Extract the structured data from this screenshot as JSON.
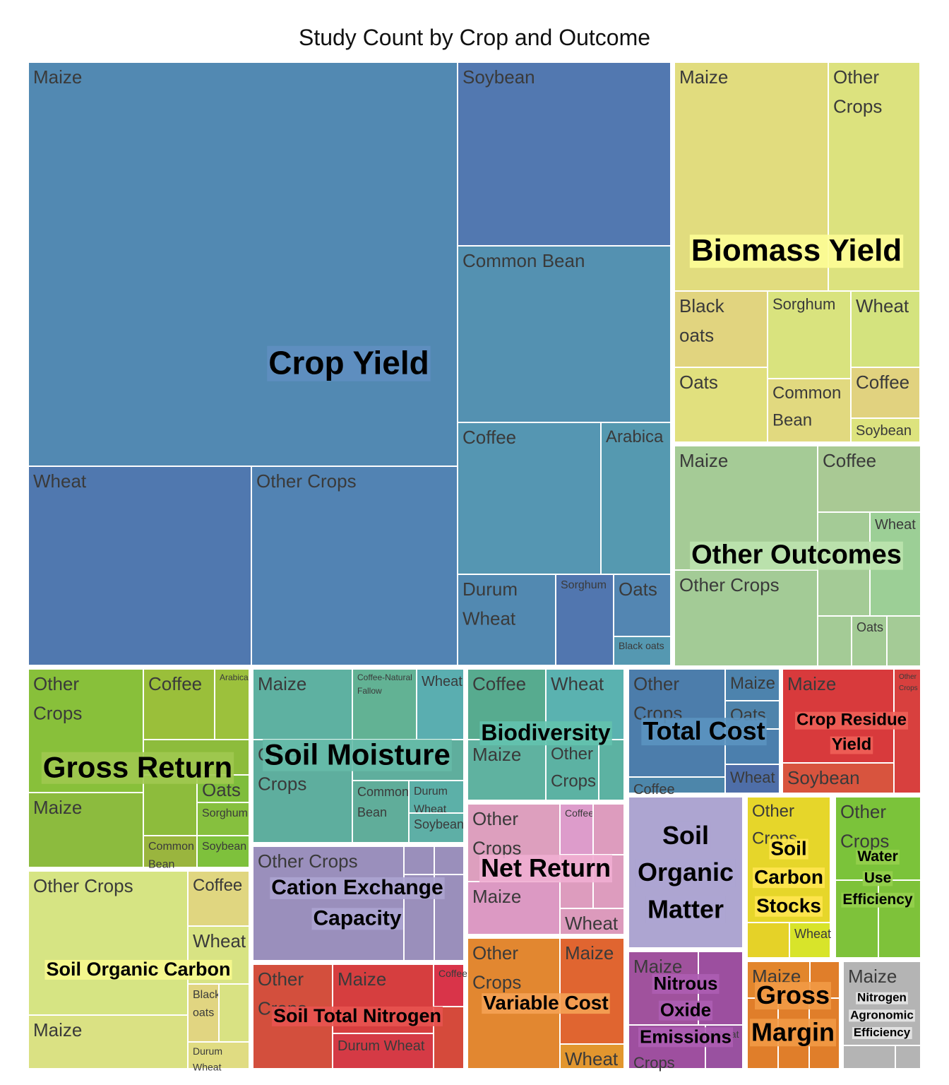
{
  "chart_data": {
    "type": "treemap",
    "title": "Study Count by Crop and Outcome",
    "groups": [
      {
        "name": "Crop Yield",
        "color": "#5188b1",
        "label_bg": "#5f8fc0",
        "children": [
          {
            "name": "Maize",
            "color": "#5289b2"
          },
          {
            "name": "Wheat",
            "color": "#5078af"
          },
          {
            "name": "Other Crops",
            "color": "#5283b3"
          },
          {
            "name": "Soybean",
            "color": "#5278b0"
          },
          {
            "name": "Common Bean",
            "color": "#5491b1"
          },
          {
            "name": "Coffee",
            "color": "#5596b2"
          },
          {
            "name": "Arabica",
            "color": "#5599b0"
          },
          {
            "name": "Durum Wheat",
            "color": "#5289b1"
          },
          {
            "name": "Sorghum",
            "color": "#5176af"
          },
          {
            "name": "Oats",
            "color": "#5386b2"
          },
          {
            "name": "Black oats",
            "color": "#5598b1"
          }
        ]
      },
      {
        "name": "Biomass Yield",
        "color": "#e0de7e",
        "label_bg": "#fdfd96",
        "children": [
          {
            "name": "Maize",
            "color": "#e1dc7e"
          },
          {
            "name": "Other Crops",
            "color": "#dce27e"
          },
          {
            "name": "Black oats",
            "color": "#e1d47f"
          },
          {
            "name": "Sorghum",
            "color": "#d9e37e"
          },
          {
            "name": "Wheat",
            "color": "#d4e37e"
          },
          {
            "name": "Oats",
            "color": "#e1e07e"
          },
          {
            "name": "Common Bean",
            "color": "#e1d97f"
          },
          {
            "name": "Coffee",
            "color": "#e1d27f"
          },
          {
            "name": "Soybean",
            "color": "#dde37e"
          }
        ]
      },
      {
        "name": "Other Outcomes",
        "color": "#a4cb96",
        "label_bg": "#bde3ae",
        "children": [
          {
            "name": "Maize",
            "color": "#a5cb96"
          },
          {
            "name": "Coffee",
            "color": "#a9c994"
          },
          {
            "name": "Wheat",
            "color": "#9ccf96"
          },
          {
            "name": "Other Crops",
            "color": "#a3cb96"
          },
          {
            "name": "Oats",
            "color": "#a3cb95"
          }
        ]
      },
      {
        "name": "Gross Return",
        "color": "#8dbc3c",
        "label_bg": "#a0c850",
        "children": [
          {
            "name": "Other Crops",
            "color": "#88c03a"
          },
          {
            "name": "Coffee",
            "color": "#9abf3a"
          },
          {
            "name": "Arabica",
            "color": "#9cc13c"
          },
          {
            "name": "Maize",
            "color": "#8cbb3e"
          },
          {
            "name": "Oats",
            "color": "#7fbd3c"
          },
          {
            "name": "Sorghum",
            "color": "#86c03e"
          },
          {
            "name": "Common Bean",
            "color": "#9ab53e"
          },
          {
            "name": "Soybean",
            "color": "#7ec13c"
          }
        ]
      },
      {
        "name": "Soil Moisture",
        "color": "#5fae9d",
        "label_bg": "#66bba8",
        "children": [
          {
            "name": "Maize",
            "color": "#5eb1a1"
          },
          {
            "name": "Coffee-Natural Fallow",
            "color": "#62b294"
          },
          {
            "name": "Wheat",
            "color": "#5aaeb0"
          },
          {
            "name": "Other Crops",
            "color": "#5eae9e"
          },
          {
            "name": "Common Bean",
            "color": "#60ad9a"
          },
          {
            "name": "Durum Wheat",
            "color": "#5cb0a8"
          },
          {
            "name": "Soybean",
            "color": "#5eafa6"
          }
        ]
      },
      {
        "name": "Biodiversity",
        "color": "#5cb2a2",
        "label_bg": "#63c2ae",
        "children": [
          {
            "name": "Coffee",
            "color": "#57ab8f"
          },
          {
            "name": "Wheat",
            "color": "#5ab2b0"
          },
          {
            "name": "Maize",
            "color": "#5fb2a0"
          },
          {
            "name": "Other Crops",
            "color": "#5cb2a3"
          }
        ]
      },
      {
        "name": "Total Cost",
        "color": "#4b7fad",
        "label_bg": "#5b93c0",
        "children": [
          {
            "name": "Other Crops",
            "color": "#4c7dab"
          },
          {
            "name": "Maize",
            "color": "#4d83ad"
          },
          {
            "name": "Oats",
            "color": "#4f84ac"
          },
          {
            "name": "Wheat",
            "color": "#4e6ea8"
          },
          {
            "name": "Coffee",
            "color": "#4d86aa"
          }
        ]
      },
      {
        "name": "Crop Residue Yield",
        "color": "#d93e3b",
        "label_bg": "#f06058",
        "children": [
          {
            "name": "Maize",
            "color": "#d83a3c"
          },
          {
            "name": "Soybean",
            "color": "#d8543e"
          },
          {
            "name": "Other Crops",
            "color": "#d8403e"
          }
        ]
      },
      {
        "name": "Net Return",
        "color": "#dd9cbe",
        "label_bg": "#f0aed2",
        "children": [
          {
            "name": "Other Crops",
            "color": "#dd9fbe"
          },
          {
            "name": "Coffee",
            "color": "#dd9ccb"
          },
          {
            "name": "Maize",
            "color": "#dc99c3"
          },
          {
            "name": "Wheat",
            "color": "#dc9abc"
          }
        ]
      },
      {
        "name": "Cation Exchange Capacity",
        "color": "#9a8fbb",
        "label_bg": "#aca4d0",
        "children": [
          {
            "name": "Other Crops",
            "color": "#9a8fbc"
          }
        ]
      },
      {
        "name": "Soil Organic Carbon",
        "color": "#d9e283",
        "label_bg": "#f7f88e",
        "children": [
          {
            "name": "Other Crops",
            "color": "#d6e483"
          },
          {
            "name": "Coffee",
            "color": "#e0d680"
          },
          {
            "name": "Wheat",
            "color": "#d8e383"
          },
          {
            "name": "Black oats",
            "color": "#e1d581"
          },
          {
            "name": "Maize",
            "color": "#dae183"
          },
          {
            "name": "Durum Wheat",
            "color": "#e0dc82"
          }
        ]
      },
      {
        "name": "Soil Total Nitrogen",
        "color": "#d54a3b",
        "label_bg": "#e85350",
        "children": [
          {
            "name": "Other Crops",
            "color": "#d34f3d"
          },
          {
            "name": "Maize",
            "color": "#d63e3f"
          },
          {
            "name": "Coffee",
            "color": "#d93449"
          },
          {
            "name": "Durum Wheat",
            "color": "#d53a45"
          }
        ]
      },
      {
        "name": "Soil Organic Matter",
        "color": "#ada5d1",
        "label_bg": "#ada5d1",
        "children": []
      },
      {
        "name": "Variable Cost",
        "color": "#e2832c",
        "label_bg": "#f5a255",
        "children": [
          {
            "name": "Other Crops",
            "color": "#e28730"
          },
          {
            "name": "Maize",
            "color": "#e06530"
          },
          {
            "name": "Wheat",
            "color": "#e2962e"
          }
        ]
      },
      {
        "name": "Nitrous Oxide Emissions",
        "color": "#9c4f9f",
        "label_bg": "#ad5db3",
        "children": [
          {
            "name": "Maize",
            "color": "#a0529d"
          },
          {
            "name": "Other Crops",
            "color": "#9e4f9f"
          },
          {
            "name": "Wheat",
            "color": "#9951a0"
          }
        ]
      },
      {
        "name": "Soil Carbon Stocks",
        "color": "#e5d228",
        "label_bg": "#ffe650",
        "children": [
          {
            "name": "Other Crops",
            "color": "#e6d62a"
          },
          {
            "name": "Wheat",
            "color": "#d8e42a"
          }
        ]
      },
      {
        "name": "Water Use Efficiency",
        "color": "#7ec23a",
        "label_bg": "#96d04e",
        "children": [
          {
            "name": "Other Crops",
            "color": "#7bc33a"
          }
        ]
      },
      {
        "name": "Gross Margin",
        "color": "#e07e2a",
        "label_bg": "#f29a45",
        "children": [
          {
            "name": "Maize",
            "color": "#e2862c"
          }
        ]
      },
      {
        "name": "Nitrogen Agronomic Efficiency",
        "color": "#b4b4b4",
        "label_bg": "#e6e6e6",
        "children": [
          {
            "name": "Maize",
            "color": "#b4b4b4"
          }
        ]
      }
    ]
  }
}
